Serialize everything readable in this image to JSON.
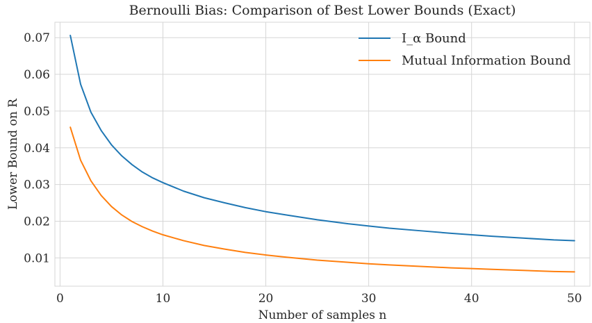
{
  "chart_data": {
    "type": "line",
    "title": "Bernoulli Bias: Comparison of Best Lower Bounds (Exact)",
    "xlabel": "Number of samples n",
    "ylabel": "Lower Bound on R",
    "xlim": [
      -0.5,
      51.5
    ],
    "ylim": [
      0.0023,
      0.0742
    ],
    "xticks": [
      0,
      10,
      20,
      30,
      40,
      50
    ],
    "xtick_labels": [
      "0",
      "10",
      "20",
      "30",
      "40",
      "50"
    ],
    "yticks": [
      0.01,
      0.02,
      0.03,
      0.04,
      0.05,
      0.06,
      0.07
    ],
    "ytick_labels": [
      "0.01",
      "0.02",
      "0.03",
      "0.04",
      "0.05",
      "0.06",
      "0.07"
    ],
    "grid": true,
    "legend_position": "top-right",
    "series": [
      {
        "name": "I_α Bound",
        "color": "#1f77b4",
        "x": [
          1,
          2,
          3,
          4,
          5,
          6,
          7,
          8,
          9,
          10,
          12,
          14,
          16,
          18,
          20,
          22,
          25,
          28,
          30,
          32,
          35,
          38,
          40,
          42,
          45,
          48,
          50
        ],
        "y": [
          0.0706,
          0.0573,
          0.0497,
          0.0447,
          0.0408,
          0.0378,
          0.0354,
          0.0334,
          0.0318,
          0.0305,
          0.0282,
          0.0264,
          0.025,
          0.0237,
          0.0226,
          0.0217,
          0.0204,
          0.0193,
          0.0187,
          0.0181,
          0.0174,
          0.0167,
          0.0163,
          0.0159,
          0.0154,
          0.0149,
          0.0147
        ]
      },
      {
        "name": "Mutual Information Bound",
        "color": "#ff7f0e",
        "x": [
          1,
          2,
          3,
          4,
          5,
          6,
          7,
          8,
          9,
          10,
          12,
          14,
          16,
          18,
          20,
          22,
          25,
          28,
          30,
          32,
          35,
          38,
          40,
          42,
          45,
          48,
          50
        ],
        "y": [
          0.0456,
          0.0366,
          0.031,
          0.027,
          0.024,
          0.0217,
          0.0199,
          0.0185,
          0.0173,
          0.0163,
          0.0147,
          0.0134,
          0.0124,
          0.0115,
          0.0108,
          0.0102,
          0.0094,
          0.0088,
          0.0084,
          0.0081,
          0.0077,
          0.0073,
          0.0071,
          0.0069,
          0.0066,
          0.0063,
          0.0062
        ]
      }
    ]
  }
}
